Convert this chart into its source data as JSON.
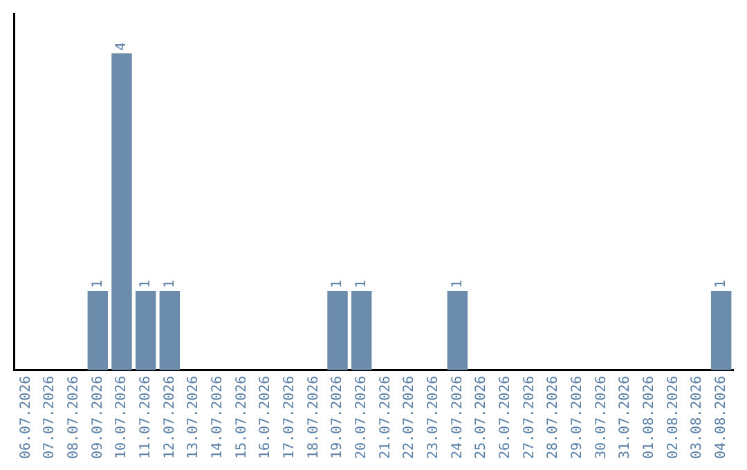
{
  "chart_data": {
    "type": "bar",
    "categories": [
      "06.07.2026",
      "07.07.2026",
      "08.07.2026",
      "09.07.2026",
      "10.07.2026",
      "11.07.2026",
      "12.07.2026",
      "13.07.2026",
      "14.07.2026",
      "15.07.2026",
      "16.07.2026",
      "17.07.2026",
      "18.07.2026",
      "19.07.2026",
      "20.07.2026",
      "21.07.2026",
      "22.07.2026",
      "23.07.2026",
      "24.07.2026",
      "25.07.2026",
      "26.07.2026",
      "27.07.2026",
      "28.07.2026",
      "29.07.2026",
      "30.07.2026",
      "31.07.2026",
      "01.08.2026",
      "02.08.2026",
      "03.08.2026",
      "04.08.2026"
    ],
    "values": [
      0,
      0,
      0,
      1,
      4,
      1,
      1,
      0,
      0,
      0,
      0,
      0,
      0,
      1,
      1,
      0,
      0,
      0,
      1,
      0,
      0,
      0,
      0,
      0,
      0,
      0,
      0,
      0,
      0,
      1
    ],
    "value_labels": [
      null,
      null,
      null,
      "1",
      "4",
      "1",
      "1",
      null,
      null,
      null,
      null,
      null,
      null,
      "1",
      "1",
      null,
      null,
      null,
      "1",
      null,
      null,
      null,
      null,
      null,
      null,
      null,
      null,
      null,
      null,
      "1"
    ],
    "color": "#6b8cab",
    "tick_labels": "x",
    "grid": false,
    "legend": false
  }
}
